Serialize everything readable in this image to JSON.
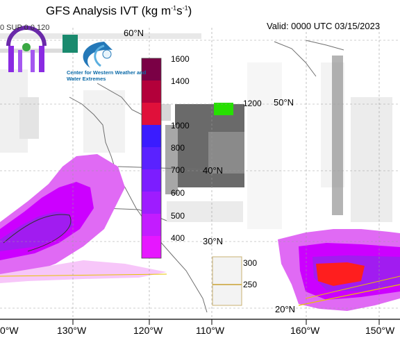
{
  "header": {
    "title_main": "GFS Analysis IVT (kg m",
    "title_sup1": "-1",
    "title_mid": "s",
    "title_sup2": "-1",
    "title_end": ")",
    "valid_text": "Valid: 0000 UTC 03/15/2023",
    "corner_text": "0 SUP 0 0 120"
  },
  "logo": {
    "org_name": "Center for Western Weather and Water Extremes"
  },
  "map": {
    "lat_labels": [
      "60°N",
      "50°N",
      "40°N",
      "30°N",
      "20°N"
    ],
    "lon_labels": [
      "0°W",
      "130°W",
      "120°W",
      "110°W",
      "160°W",
      "150°W"
    ],
    "colors": {
      "land": "#ffffff",
      "coast": "#6f6f6f",
      "ivt_250": "#f7c6f9",
      "ivt_300": "#e06af4",
      "ivt_400": "#cc00ff",
      "ivt_500": "#a11cf0",
      "ivt_high": "#ff1e1e"
    }
  },
  "colorbar": {
    "upper_ticks": [
      "1600",
      "1400",
      "1200",
      "1000",
      "800",
      "700",
      "600",
      "500",
      "400"
    ],
    "lower_ticks": [
      "300",
      "250"
    ],
    "colors": [
      "#7a0045",
      "#b3003a",
      "#e0103a",
      "#3a1cff",
      "#5a22ff",
      "#7c1dff",
      "#9e1cff",
      "#c31cff",
      "#e617ff",
      "#ffd27a",
      "#ffe3a8"
    ]
  }
}
